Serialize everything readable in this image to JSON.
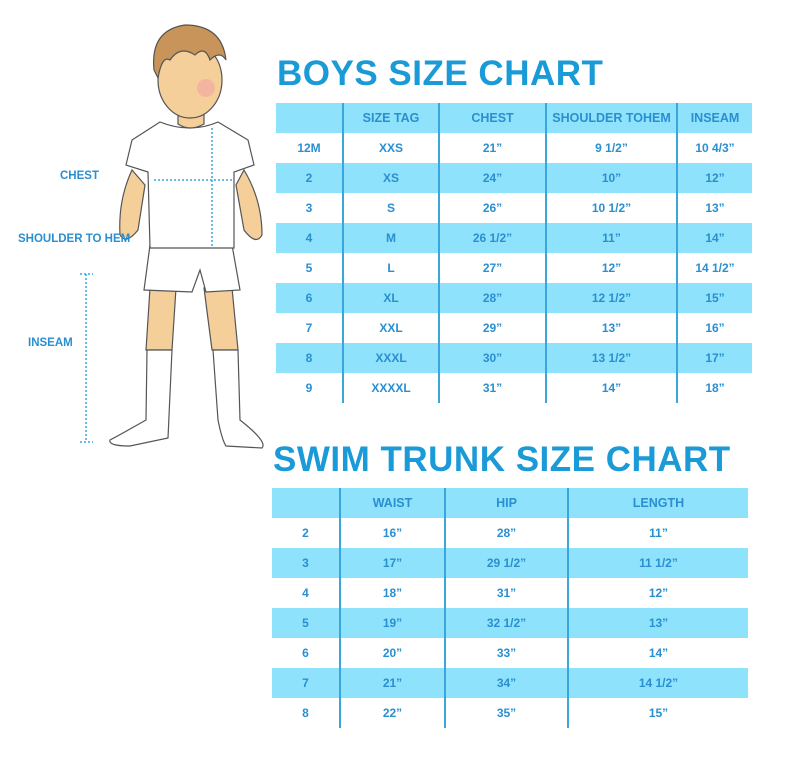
{
  "boys_chart": {
    "title": "BOYS SIZE CHART",
    "headers": [
      "",
      "SIZE TAG",
      "CHEST",
      "SHOULDER TOHEM",
      "INSEAM"
    ],
    "rows": [
      [
        "12M",
        "XXS",
        "21”",
        "9 1/2”",
        "10 4/3”"
      ],
      [
        "2",
        "XS",
        "24”",
        "10”",
        "12”"
      ],
      [
        "3",
        "S",
        "26”",
        "10 1/2”",
        "13”"
      ],
      [
        "4",
        "M",
        "26 1/2”",
        "11”",
        "14”"
      ],
      [
        "5",
        "L",
        "27”",
        "12”",
        "14 1/2”"
      ],
      [
        "6",
        "XL",
        "28”",
        "12 1/2”",
        "15”"
      ],
      [
        "7",
        "XXL",
        "29”",
        "13”",
        "16”"
      ],
      [
        "8",
        "XXXL",
        "30”",
        "13 1/2”",
        "17”"
      ],
      [
        "9",
        "XXXXL",
        "31”",
        "14”",
        "18”"
      ]
    ]
  },
  "swim_chart": {
    "title": "SWIM TRUNK SIZE CHART",
    "headers": [
      "",
      "WAIST",
      "HIP",
      "LENGTH"
    ],
    "rows": [
      [
        "2",
        "16”",
        "28”",
        "11”"
      ],
      [
        "3",
        "17”",
        "29 1/2”",
        "11 1/2”"
      ],
      [
        "4",
        "18”",
        "31”",
        "12”"
      ],
      [
        "5",
        "19”",
        "32 1/2”",
        "13”"
      ],
      [
        "6",
        "20”",
        "33”",
        "14”"
      ],
      [
        "7",
        "21”",
        "34”",
        "14 1/2”"
      ],
      [
        "8",
        "22”",
        "35”",
        "15”"
      ]
    ]
  },
  "figure_labels": {
    "chest": "CHEST",
    "shoulder_to_hem": "SHOULDER TO HEM",
    "inseam": "INSEAM"
  },
  "colors": {
    "accent": "#1a9ad6",
    "row_shade": "#8fe2fb",
    "text": "#2a8fd0"
  }
}
